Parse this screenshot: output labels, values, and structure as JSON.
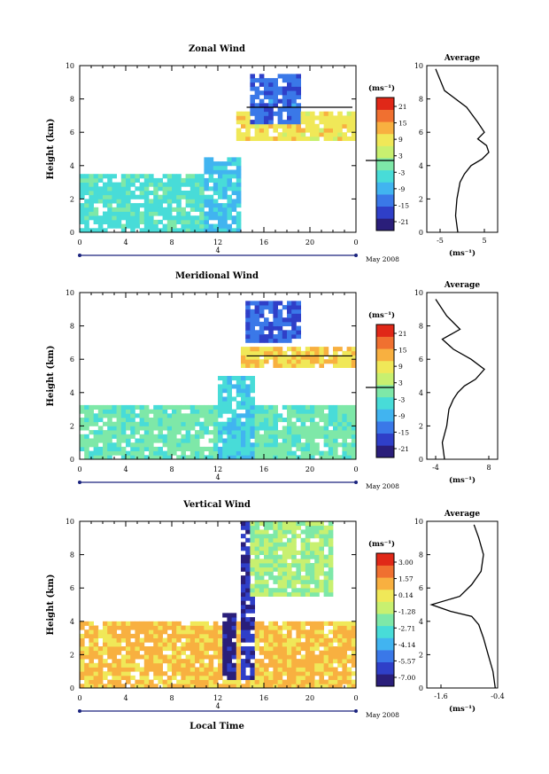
{
  "panels": [
    {
      "id": "zonal",
      "title": "Zonal Wind",
      "ylabel": "Height (km)",
      "yticks": [
        "0",
        "2",
        "4",
        "6",
        "8",
        "10"
      ],
      "xticks": [
        "0",
        "4",
        "8",
        "12",
        "16",
        "20",
        "0"
      ],
      "day_label": "4",
      "date_label": "May 2008",
      "xlabel": "",
      "cbar_unit": "(ms⁻¹)",
      "cbar_ticks": [
        "21",
        "15",
        "9",
        "3",
        "-3",
        "-9",
        "-15",
        "-21"
      ],
      "avg_title": "Average",
      "avg_xticks": [
        "-5",
        "5"
      ],
      "avg_yticks": [
        "0",
        "2",
        "4",
        "6",
        "8",
        "10"
      ],
      "avg_unit": "(ms⁻¹)"
    },
    {
      "id": "meridional",
      "title": "Meridional Wind",
      "ylabel": "Height (km)",
      "yticks": [
        "0",
        "2",
        "4",
        "6",
        "8",
        "10"
      ],
      "xticks": [
        "0",
        "4",
        "8",
        "12",
        "16",
        "20",
        "0"
      ],
      "day_label": "4",
      "date_label": "May 2008",
      "xlabel": "",
      "cbar_unit": "(ms⁻¹)",
      "cbar_ticks": [
        "21",
        "15",
        "9",
        "3",
        "-3",
        "-9",
        "-15",
        "-21"
      ],
      "avg_title": "Average",
      "avg_xticks": [
        "-4",
        "8"
      ],
      "avg_yticks": [
        "0",
        "2",
        "4",
        "6",
        "8",
        "10"
      ],
      "avg_unit": "(ms⁻¹)"
    },
    {
      "id": "vertical",
      "title": "Vertical Wind",
      "ylabel": "Height (km)",
      "yticks": [
        "0",
        "2",
        "4",
        "6",
        "8",
        "10"
      ],
      "xticks": [
        "0",
        "4",
        "8",
        "12",
        "16",
        "20",
        "0"
      ],
      "day_label": "4",
      "date_label": "May 2008",
      "xlabel": "Local Time",
      "cbar_unit": "(ms⁻¹)",
      "cbar_ticks": [
        "3.00",
        "1.57",
        "0.14",
        "-1.28",
        "-2.71",
        "-4.14",
        "-5.57",
        "-7.00"
      ],
      "avg_title": "Average",
      "avg_xticks": [
        "-1.6",
        "-0.4"
      ],
      "avg_yticks": [
        "0",
        "2",
        "4",
        "6",
        "8",
        "10"
      ],
      "avg_unit": "(ms⁻¹)"
    }
  ],
  "colors": {
    "colormap": [
      "#2a1e7a",
      "#2f3fc8",
      "#3a78e8",
      "#41b4f0",
      "#48dcd8",
      "#7ee8a8",
      "#c8f070",
      "#f0e858",
      "#f8b040",
      "#f07030",
      "#e02818"
    ]
  },
  "chart_data": [
    {
      "type": "heatmap",
      "title": "Zonal Wind",
      "xlabel": "",
      "ylabel": "Height (km)",
      "xlim": [
        0,
        24
      ],
      "ylim": [
        0,
        10
      ],
      "clim": [
        -21,
        21
      ],
      "units": "ms-1",
      "features": [
        {
          "x": [
            0,
            13
          ],
          "y": [
            0,
            3.5
          ],
          "value": -3
        },
        {
          "x": [
            11,
            14
          ],
          "y": [
            0,
            4.5
          ],
          "value": -6
        },
        {
          "x": [
            13.5,
            24
          ],
          "y": [
            5.5,
            7.2
          ],
          "value": 8
        },
        {
          "x": [
            15,
            19
          ],
          "y": [
            6.5,
            9.5
          ],
          "value": -12
        }
      ],
      "zero_contour_height_km": 7.5,
      "avg_profile": {
        "xlim": [
          -8,
          8
        ],
        "x": [
          -1,
          -1.5,
          -1.2,
          -0.5,
          0.5,
          2,
          4.5,
          6,
          5.5,
          3.5,
          5,
          3.5,
          1,
          -4,
          -6
        ],
        "y": [
          0,
          1,
          2,
          3,
          3.5,
          4,
          4.4,
          4.8,
          5.2,
          5.6,
          6,
          6.6,
          7.5,
          8.5,
          9.8
        ]
      }
    },
    {
      "type": "heatmap",
      "title": "Meridional Wind",
      "xlabel": "",
      "ylabel": "Height (km)",
      "xlim": [
        0,
        24
      ],
      "ylim": [
        0,
        10
      ],
      "clim": [
        -21,
        21
      ],
      "units": "ms-1",
      "features": [
        {
          "x": [
            0,
            24
          ],
          "y": [
            0,
            3.2
          ],
          "value": -1
        },
        {
          "x": [
            12,
            15
          ],
          "y": [
            0,
            5
          ],
          "value": -5
        },
        {
          "x": [
            14,
            24
          ],
          "y": [
            5.5,
            6.8
          ],
          "value": 9
        },
        {
          "x": [
            14.5,
            19
          ],
          "y": [
            7,
            9.5
          ],
          "value": -13
        }
      ],
      "zero_contour_height_km": 6.2,
      "avg_profile": {
        "xlim": [
          -6,
          10
        ],
        "x": [
          -2,
          -2.5,
          -1.5,
          -1,
          0,
          1,
          2.5,
          5,
          7,
          4,
          0,
          -2.5,
          1.5,
          -1.5,
          -4
        ],
        "y": [
          0,
          1,
          2,
          3,
          3.6,
          4,
          4.4,
          4.8,
          5.4,
          6,
          6.6,
          7.2,
          7.8,
          8.6,
          9.6
        ]
      }
    },
    {
      "type": "heatmap",
      "title": "Vertical Wind",
      "xlabel": "Local Time",
      "ylabel": "Height (km)",
      "xlim": [
        0,
        24
      ],
      "ylim": [
        0,
        10
      ],
      "clim": [
        -7.0,
        3.0
      ],
      "units": "ms-1",
      "features": [
        {
          "x": [
            0,
            24
          ],
          "y": [
            0,
            4
          ],
          "value": 0.5
        },
        {
          "x": [
            12.5,
            13.5
          ],
          "y": [
            0.5,
            4.5
          ],
          "value": -6.5
        },
        {
          "x": [
            14,
            15
          ],
          "y": [
            0.5,
            10
          ],
          "value": -6
        },
        {
          "x": [
            15,
            22
          ],
          "y": [
            5.5,
            10
          ],
          "value": -1.5
        }
      ],
      "avg_profile": {
        "xlim": [
          -1.9,
          -0.4
        ],
        "x": [
          -0.45,
          -0.5,
          -0.6,
          -0.7,
          -0.8,
          -0.95,
          -1.4,
          -1.8,
          -1.2,
          -0.95,
          -0.75,
          -0.7,
          -0.8,
          -0.9
        ],
        "y": [
          0,
          1,
          2,
          3,
          3.8,
          4.3,
          4.6,
          5.0,
          5.5,
          6.2,
          7,
          8,
          9,
          9.8
        ]
      }
    }
  ]
}
